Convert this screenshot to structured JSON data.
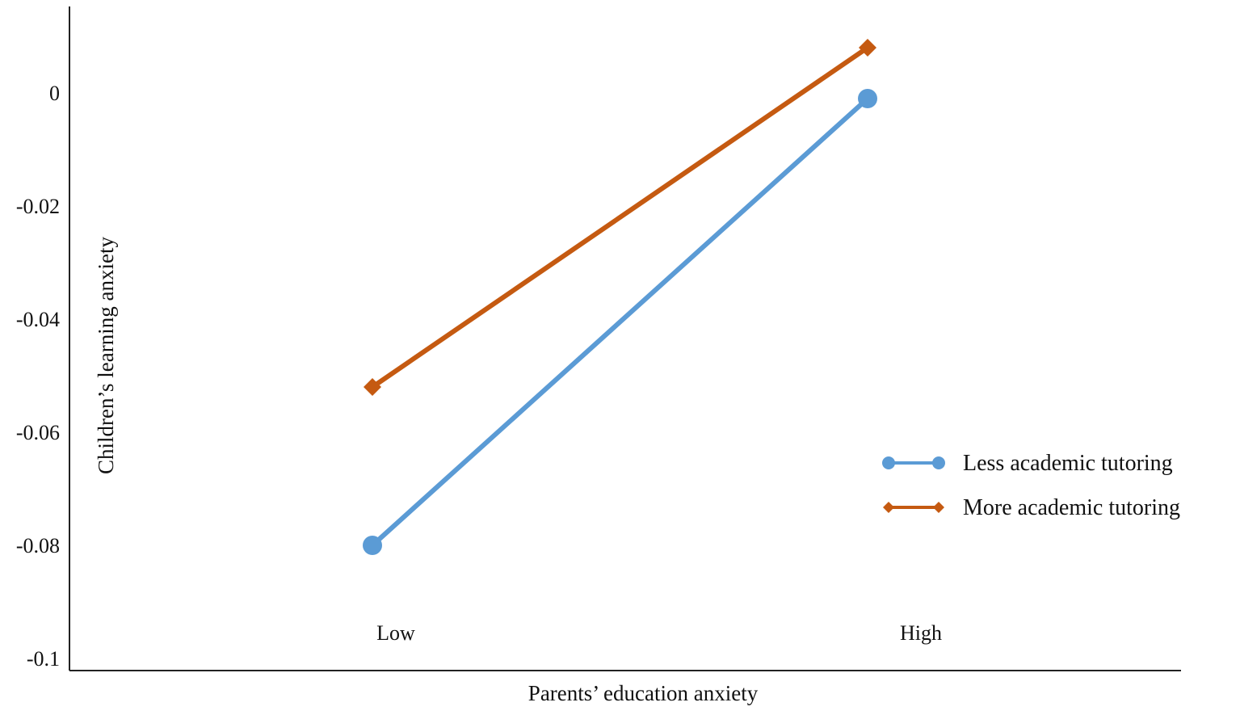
{
  "chart_data": {
    "type": "line",
    "title": "",
    "xlabel": "Parents’ education anxiety",
    "ylabel": "Children’s learning anxiety",
    "categories": [
      "Low",
      "High"
    ],
    "y_ticks": [
      "0",
      "-0.02",
      "-0.04",
      "-0.06",
      "-0.08",
      "-0.1"
    ],
    "y_tick_values": [
      0,
      -0.02,
      -0.04,
      -0.06,
      -0.08,
      -0.1
    ],
    "ylim": [
      -0.1,
      0.01
    ],
    "grid": false,
    "legend_position": "right",
    "series": [
      {
        "name": "Less academic tutoring",
        "values": [
          -0.08,
          -0.001
        ],
        "color": "#5B9BD5",
        "marker": "circle"
      },
      {
        "name": "More academic tutoring",
        "values": [
          -0.052,
          0.008
        ],
        "color": "#C55A11",
        "marker": "diamond"
      }
    ]
  }
}
